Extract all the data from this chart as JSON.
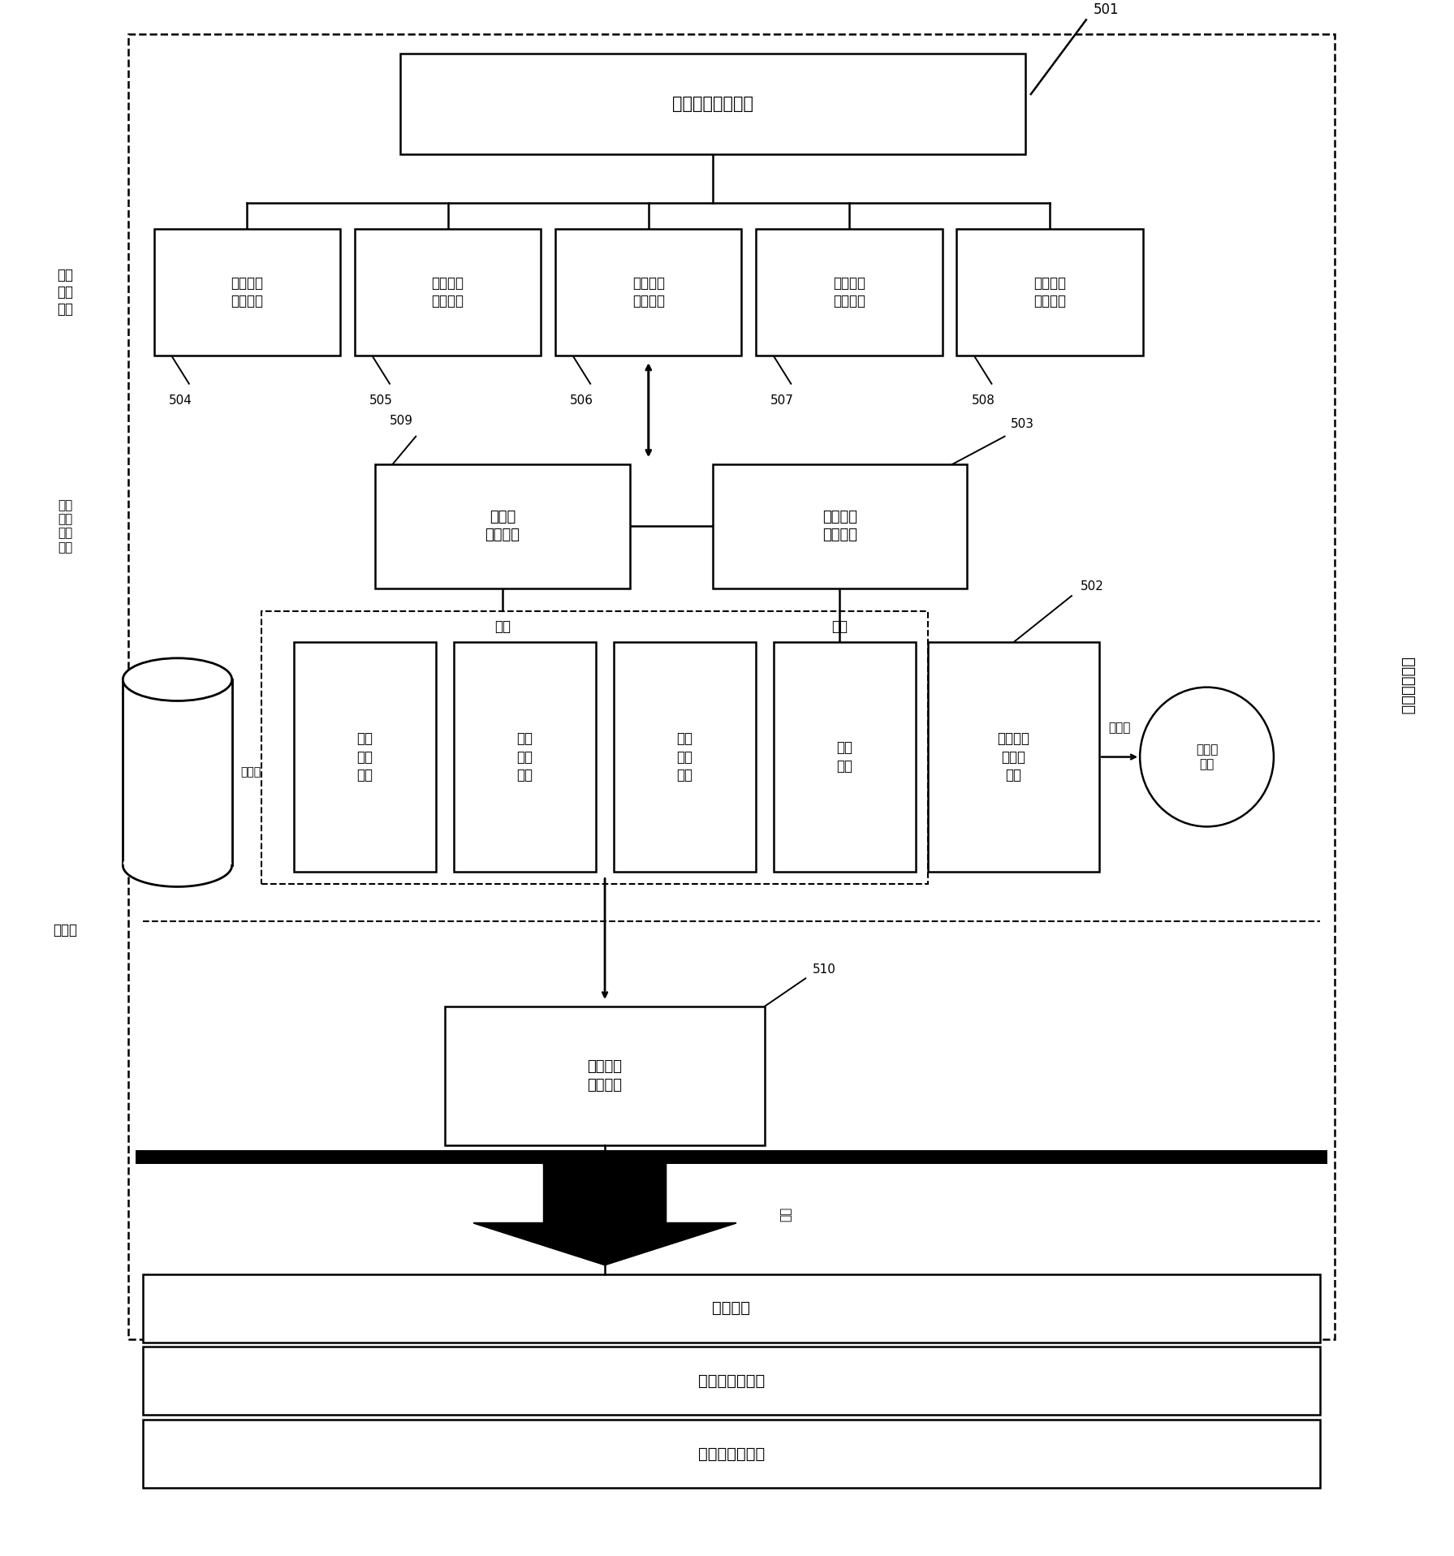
{
  "fig_width": 17.91,
  "fig_height": 19.17,
  "box_501_text": "测试平台程序模块",
  "box_504_text": "仪器设备\n配置模块",
  "box_505_text": "总线驱动\n配置模块",
  "box_506_text": "测试流程\n配置模块",
  "box_507_text": "设备驱动\n配置模块",
  "box_508_text": "测试算法\n配置模块",
  "box_509_text": "数据库\n读写模块",
  "box_503_text": "配置文件\n读写模块",
  "box_502_text": "配置信息\n二进制\n文件",
  "box_master_text": "主控机\n硬盘",
  "box_sm1_text": "总线\n驱动\n信息",
  "box_sm2_text": "仪器\n组合\n信息",
  "box_sm3_text": "设备\n驱动\n信息",
  "box_sm4_text": "测试\n算法",
  "box_510_text": "测试函数\n生成模块",
  "box_os_text": "操作系统",
  "box_bus_text": "总线板卡驱动包",
  "box_inst_text": "仪器设备驱动包",
  "right_label": "测试软件系统",
  "label_renjijiohu": "人机\n交互\n部分",
  "label_diceng": "底层\n文件\n读写\n模块",
  "label_shujuku": "数据库",
  "text_shengcheng": "生成",
  "text_chuanxinghua": "串行化",
  "text_cunchu": "存储于",
  "text_diaoyong": "调用"
}
